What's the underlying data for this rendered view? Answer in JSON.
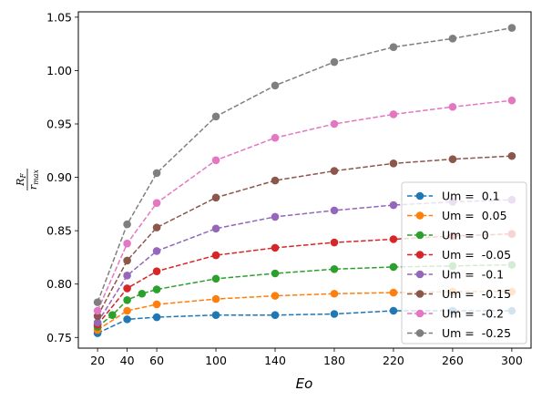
{
  "chart_data": {
    "type": "line",
    "title": "",
    "xlabel": "Eo",
    "ylabel": {
      "main": "R",
      "sub_main": "F",
      "den": "r",
      "sub_den": "max"
    },
    "xlim": [
      7,
      313
    ],
    "ylim": [
      0.74,
      1.055
    ],
    "xticks": [
      20,
      40,
      60,
      100,
      140,
      180,
      220,
      260,
      300
    ],
    "yticks": [
      0.75,
      0.8,
      0.85,
      0.9,
      0.95,
      1.0,
      1.05
    ],
    "ytick_labels": [
      "0.75",
      "0.80",
      "0.85",
      "0.90",
      "0.95",
      "1.00",
      "1.05"
    ],
    "grid": false,
    "legend_position": "lower-right",
    "series": [
      {
        "name": "Um =  0.1",
        "color": "#1f77b4",
        "x": [
          20,
          40,
          60,
          100,
          140,
          180,
          220,
          260,
          300
        ],
        "y": [
          0.754,
          0.767,
          0.769,
          0.771,
          0.771,
          0.772,
          0.775,
          0.775,
          0.775
        ]
      },
      {
        "name": "Um =  0.05",
        "color": "#ff7f0e",
        "x": [
          20,
          40,
          60,
          100,
          140,
          180,
          220,
          260,
          300
        ],
        "y": [
          0.757,
          0.775,
          0.781,
          0.786,
          0.789,
          0.791,
          0.792,
          0.793,
          0.793
        ]
      },
      {
        "name": "Um =  0",
        "color": "#2ca02c",
        "x": [
          20,
          30,
          40,
          50,
          60,
          100,
          140,
          180,
          220,
          260,
          300
        ],
        "y": [
          0.76,
          0.771,
          0.785,
          0.791,
          0.795,
          0.805,
          0.81,
          0.814,
          0.816,
          0.817,
          0.818
        ]
      },
      {
        "name": "Um =  -0.05",
        "color": "#d62728",
        "x": [
          20,
          40,
          60,
          100,
          140,
          180,
          220,
          260,
          300
        ],
        "y": [
          0.762,
          0.796,
          0.812,
          0.827,
          0.834,
          0.839,
          0.842,
          0.845,
          0.847
        ]
      },
      {
        "name": "Um =  -0.1",
        "color": "#9467bd",
        "x": [
          20,
          40,
          60,
          100,
          140,
          180,
          220,
          260,
          300
        ],
        "y": [
          0.764,
          0.808,
          0.831,
          0.852,
          0.863,
          0.869,
          0.874,
          0.877,
          0.879
        ]
      },
      {
        "name": "Um =  -0.15",
        "color": "#8c564b",
        "x": [
          20,
          40,
          60,
          100,
          140,
          180,
          220,
          260,
          300
        ],
        "y": [
          0.77,
          0.822,
          0.853,
          0.881,
          0.897,
          0.906,
          0.913,
          0.917,
          0.92
        ]
      },
      {
        "name": "Um =  -0.2",
        "color": "#e377c2",
        "x": [
          20,
          40,
          60,
          100,
          140,
          180,
          220,
          260,
          300
        ],
        "y": [
          0.775,
          0.838,
          0.876,
          0.916,
          0.937,
          0.95,
          0.959,
          0.966,
          0.972
        ]
      },
      {
        "name": "Um =  -0.25",
        "color": "#7f7f7f",
        "x": [
          20,
          40,
          60,
          100,
          140,
          180,
          220,
          260,
          300
        ],
        "y": [
          0.783,
          0.856,
          0.904,
          0.957,
          0.986,
          1.008,
          1.022,
          1.03,
          1.04
        ]
      }
    ]
  }
}
